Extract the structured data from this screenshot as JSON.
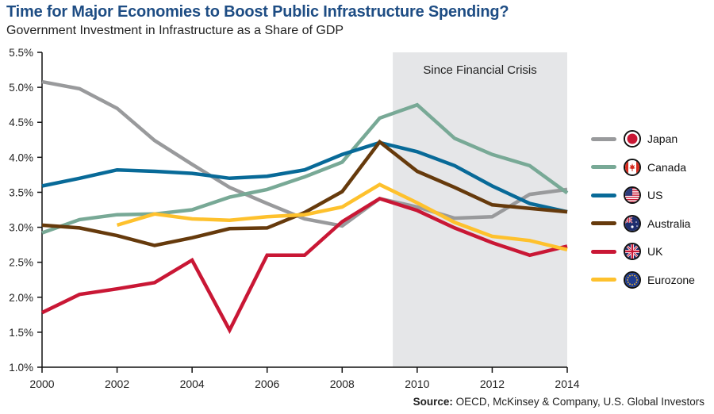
{
  "header": {
    "title": "Time for Major Economies to Boost Public Infrastructure Spending?",
    "subtitle": "Government Investment in Infrastructure as a Share of GDP"
  },
  "source": {
    "label": "Source:",
    "text": " OECD, McKinsey & Company, U.S. Global Investors"
  },
  "chart_data": {
    "type": "line",
    "title": "Time for Major Economies to Boost Public Infrastructure Spending?",
    "subtitle": "Government Investment in Infrastructure as a Share of GDP",
    "xlabel": "",
    "ylabel": "",
    "x": [
      2000,
      2001,
      2002,
      2003,
      2004,
      2005,
      2006,
      2007,
      2008,
      2009,
      2010,
      2011,
      2012,
      2013,
      2014
    ],
    "xlim": [
      2000,
      2014
    ],
    "ylim": [
      1.0,
      5.5
    ],
    "x_ticks": [
      2000,
      2002,
      2004,
      2006,
      2008,
      2010,
      2012,
      2014
    ],
    "x_tick_labels": [
      "2000",
      "2002",
      "2004",
      "2006",
      "2008",
      "2010",
      "2012",
      "2014"
    ],
    "y_ticks": [
      1.0,
      1.5,
      2.0,
      2.5,
      3.0,
      3.5,
      4.0,
      4.5,
      5.0,
      5.5
    ],
    "y_tick_labels": [
      "1.0%",
      "1.5%",
      "2.0%",
      "2.5%",
      "3.0%",
      "3.5%",
      "4.0%",
      "4.5%",
      "5.0%",
      "5.5%"
    ],
    "grid": false,
    "legend_position": "right",
    "annotation": {
      "label": "Since Financial Crisis",
      "x_start": 2009.35,
      "x_end": 2014,
      "color": "#e5e6e8"
    },
    "series": [
      {
        "name": "Japan",
        "color": "#999a9c",
        "flag": "japan",
        "values": [
          5.08,
          4.98,
          4.7,
          4.24,
          3.9,
          3.57,
          3.34,
          3.12,
          3.02,
          3.41,
          3.29,
          3.13,
          3.15,
          3.47,
          3.54
        ]
      },
      {
        "name": "Canada",
        "color": "#78a996",
        "flag": "canada",
        "values": [
          2.92,
          3.11,
          3.18,
          3.19,
          3.25,
          3.43,
          3.54,
          3.72,
          3.93,
          4.56,
          4.75,
          4.27,
          4.04,
          3.88,
          3.49
        ]
      },
      {
        "name": "US",
        "color": "#086a98",
        "flag": "us",
        "values": [
          3.59,
          3.7,
          3.82,
          3.8,
          3.77,
          3.7,
          3.73,
          3.82,
          4.04,
          4.21,
          4.08,
          3.88,
          3.59,
          3.34,
          3.22
        ]
      },
      {
        "name": "Australia",
        "color": "#663a0c",
        "flag": "australia",
        "values": [
          3.03,
          2.99,
          2.88,
          2.74,
          2.85,
          2.98,
          2.99,
          3.21,
          3.51,
          4.22,
          3.8,
          3.57,
          3.32,
          3.27,
          3.22
        ]
      },
      {
        "name": "UK",
        "color": "#c91735",
        "flag": "uk",
        "values": [
          1.78,
          2.04,
          2.12,
          2.21,
          2.53,
          1.53,
          2.6,
          2.6,
          3.08,
          3.41,
          3.24,
          2.99,
          2.78,
          2.6,
          2.73
        ]
      },
      {
        "name": "Eurozone",
        "color": "#fec12d",
        "flag": "eurozone",
        "values": [
          null,
          null,
          3.03,
          3.19,
          3.12,
          3.1,
          3.15,
          3.18,
          3.29,
          3.61,
          3.35,
          3.07,
          2.87,
          2.81,
          2.68
        ]
      }
    ]
  }
}
